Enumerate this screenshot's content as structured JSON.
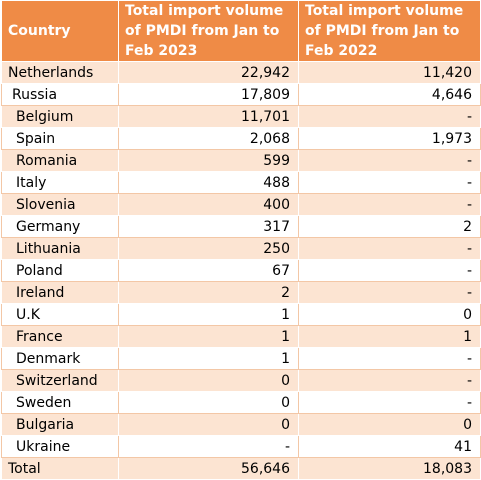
{
  "table": {
    "headers": [
      "Country",
      "Total import volume of PMDI from Jan to Feb 2023",
      "Total import volume of PMDI from Jan to Feb 2022"
    ],
    "rows": [
      {
        "country": "Netherlands",
        "v2023": "22,942",
        "v2022": "11,420"
      },
      {
        "country": "Russia",
        "v2023": "17,809",
        "v2022": "4,646"
      },
      {
        "country": "Belgium",
        "v2023": "11,701",
        "v2022": "-"
      },
      {
        "country": "Spain",
        "v2023": "2,068",
        "v2022": "1,973"
      },
      {
        "country": "Romania",
        "v2023": "599",
        "v2022": "-"
      },
      {
        "country": "Italy",
        "v2023": "488",
        "v2022": "-"
      },
      {
        "country": "Slovenia",
        "v2023": "400",
        "v2022": "-"
      },
      {
        "country": "Germany",
        "v2023": "317",
        "v2022": "2"
      },
      {
        "country": "Lithuania",
        "v2023": "250",
        "v2022": "-"
      },
      {
        "country": "Poland",
        "v2023": "67",
        "v2022": "-"
      },
      {
        "country": "Ireland",
        "v2023": "2",
        "v2022": "-"
      },
      {
        "country": "U.K",
        "v2023": "1",
        "v2022": "0"
      },
      {
        "country": "France",
        "v2023": "1",
        "v2022": "1"
      },
      {
        "country": "Denmark",
        "v2023": "1",
        "v2022": "-"
      },
      {
        "country": "Switzerland",
        "v2023": "0",
        "v2022": "-"
      },
      {
        "country": "Sweden",
        "v2023": "0",
        "v2022": "-"
      },
      {
        "country": "Bulgaria",
        "v2023": "0",
        "v2022": "0"
      },
      {
        "country": "Ukraine",
        "v2023": "-",
        "v2022": "41"
      },
      {
        "country": "Total",
        "v2023": "56,646",
        "v2022": "18,083"
      }
    ]
  },
  "colors": {
    "header_bg": "#ef8b46",
    "header_text": "#ffffff",
    "band_bg": "#fce4d2"
  }
}
